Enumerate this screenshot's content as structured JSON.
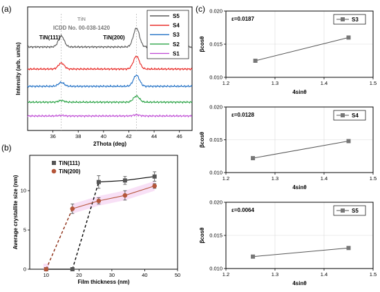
{
  "panels": {
    "a": "(a)",
    "b": "(b)",
    "c": "(c)"
  },
  "chart_data": [
    {
      "id": "a",
      "type": "line",
      "xlabel": "2Thota (deg)",
      "ylabel": "Intensity (arb. units)",
      "xlim": [
        34,
        47
      ],
      "xticks": [
        "36",
        "38",
        "40",
        "42",
        "44",
        "46"
      ],
      "annotations": {
        "ref_line1": "TiN",
        "ref_line2": "ICDD No. 00-038-1420",
        "peak1": "TiN(111)",
        "peak2": "TiN(200)"
      },
      "ref_peaks": [
        36.66,
        42.6
      ],
      "legend_position": "top-right",
      "series": [
        {
          "name": "S5",
          "color": "#595959",
          "offset": 5,
          "amp111": 1.0,
          "amp200": 1.7
        },
        {
          "name": "S4",
          "color": "#e8231f",
          "offset": 4,
          "amp111": 0.55,
          "amp200": 1.15
        },
        {
          "name": "S3",
          "color": "#1f6fc5",
          "offset": 3,
          "amp111": 0.35,
          "amp200": 1.0
        },
        {
          "name": "S2",
          "color": "#2aa345",
          "offset": 2,
          "amp111": 0.15,
          "amp200": 0.55
        },
        {
          "name": "S1",
          "color": "#c04fd6",
          "offset": 1,
          "amp111": 0.05,
          "amp200": 0.1
        }
      ]
    },
    {
      "id": "b",
      "type": "line",
      "xlabel": "Film thickness (nm)",
      "ylabel": "Average crystallite size (nm)",
      "xlim": [
        5,
        50
      ],
      "ylim": [
        0,
        14.5
      ],
      "xticks": [
        10,
        20,
        30,
        40,
        50
      ],
      "yticks": [
        0,
        5,
        10
      ],
      "legend_position": "top-left",
      "series": [
        {
          "name": "TiN(111)",
          "color": "#555555",
          "marker": "square",
          "x": [
            10,
            18,
            26,
            34,
            43
          ],
          "y": [
            0,
            0,
            11.1,
            11.3,
            11.8
          ],
          "err": [
            0,
            0,
            0.8,
            0.5,
            0.6
          ]
        },
        {
          "name": "TiN(200)",
          "color": "#b5563a",
          "marker": "circle",
          "x": [
            10,
            18,
            26,
            34,
            43
          ],
          "y": [
            0,
            7.7,
            8.7,
            9.4,
            10.6
          ],
          "err": [
            0,
            0.6,
            0.4,
            0.6,
            0.3
          ]
        }
      ]
    },
    {
      "id": "c1",
      "type": "line",
      "xlabel": "4sinθ",
      "ylabel": "βcosθ",
      "xlim": [
        1.2,
        1.5
      ],
      "ylim": [
        0.01,
        0.02
      ],
      "xticks": [
        "1.2",
        "1.3",
        "1.4",
        "1.5"
      ],
      "yticks": [
        "0.010",
        "0.015",
        "0.020"
      ],
      "annotation": "ε=0.0187",
      "legend_position": "top-right",
      "series": [
        {
          "name": "S3",
          "x": [
            1.26,
            1.45
          ],
          "y": [
            0.0125,
            0.016
          ]
        }
      ]
    },
    {
      "id": "c2",
      "type": "line",
      "xlabel": "4sinθ",
      "ylabel": "βcosθ",
      "xlim": [
        1.2,
        1.5
      ],
      "ylim": [
        0.01,
        0.02
      ],
      "xticks": [
        "1.2",
        "1.3",
        "1.4",
        "1.5"
      ],
      "yticks": [
        "0.010",
        "0.015",
        "0.020"
      ],
      "annotation": "ε=0.0128",
      "legend_position": "top-right",
      "series": [
        {
          "name": "S4",
          "x": [
            1.255,
            1.45
          ],
          "y": [
            0.0122,
            0.0148
          ]
        }
      ]
    },
    {
      "id": "c3",
      "type": "line",
      "xlabel": "4sinθ",
      "ylabel": "βcosθ",
      "xlim": [
        1.2,
        1.5
      ],
      "ylim": [
        0.01,
        0.02
      ],
      "xticks": [
        "1.2",
        "1.3",
        "1.4",
        "1.5"
      ],
      "yticks": [
        "0.010",
        "0.015",
        "0.020"
      ],
      "annotation": "ε=0.0064",
      "legend_position": "top-right",
      "series": [
        {
          "name": "S5",
          "x": [
            1.255,
            1.45
          ],
          "y": [
            0.0118,
            0.0131
          ]
        }
      ]
    }
  ]
}
